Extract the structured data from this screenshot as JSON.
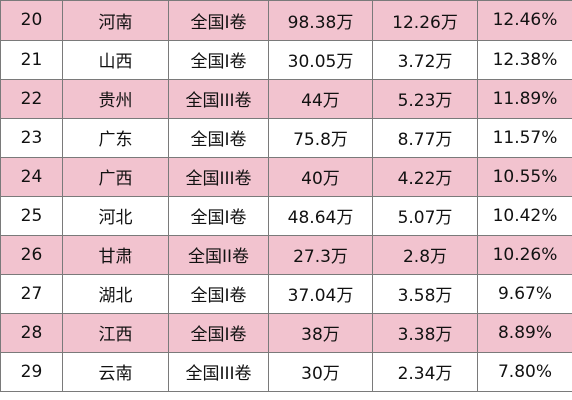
{
  "table": {
    "rows": [
      {
        "rank": "20",
        "province": "河南",
        "paper": "全国I卷",
        "total": "98.38万",
        "count": "12.26万",
        "rate": "12.46%"
      },
      {
        "rank": "21",
        "province": "山西",
        "paper": "全国I卷",
        "total": "30.05万",
        "count": "3.72万",
        "rate": "12.38%"
      },
      {
        "rank": "22",
        "province": "贵州",
        "paper": "全国III卷",
        "total": "44万",
        "count": "5.23万",
        "rate": "11.89%"
      },
      {
        "rank": "23",
        "province": "广东",
        "paper": "全国I卷",
        "total": "75.8万",
        "count": "8.77万",
        "rate": "11.57%"
      },
      {
        "rank": "24",
        "province": "广西",
        "paper": "全国III卷",
        "total": "40万",
        "count": "4.22万",
        "rate": "10.55%"
      },
      {
        "rank": "25",
        "province": "河北",
        "paper": "全国I卷",
        "total": "48.64万",
        "count": "5.07万",
        "rate": "10.42%"
      },
      {
        "rank": "26",
        "province": "甘肃",
        "paper": "全国II卷",
        "total": "27.3万",
        "count": "2.8万",
        "rate": "10.26%"
      },
      {
        "rank": "27",
        "province": "湖北",
        "paper": "全国I卷",
        "total": "37.04万",
        "count": "3.58万",
        "rate": "9.67%"
      },
      {
        "rank": "28",
        "province": "江西",
        "paper": "全国I卷",
        "total": "38万",
        "count": "3.38万",
        "rate": "8.89%"
      },
      {
        "rank": "29",
        "province": "云南",
        "paper": "全国III卷",
        "total": "30万",
        "count": "2.34万",
        "rate": "7.80%"
      }
    ]
  },
  "colors": {
    "stripe_pink": "#f2c3cf",
    "stripe_white": "#ffffff",
    "border": "#7a7a7a"
  }
}
